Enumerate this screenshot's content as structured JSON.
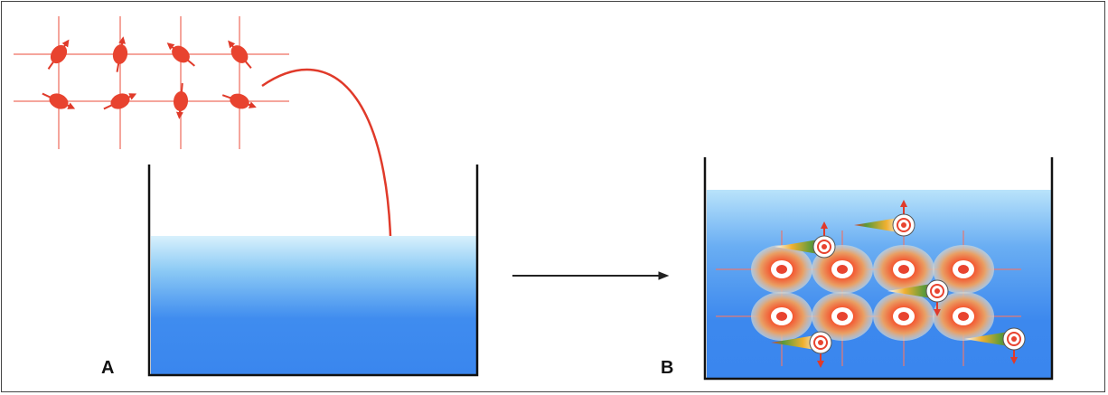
{
  "panels": {
    "a": {
      "label": "A"
    },
    "b": {
      "label": "B"
    }
  },
  "colors": {
    "lattice": "#f08a80",
    "particle": "#e8432f",
    "arrow": "#e03a2a",
    "water_top": "#c9ecfb",
    "water_bottom": "#3a86ee",
    "container": "#111111",
    "transition_arrow": "#222222"
  },
  "icons": {
    "particle": "spin-particle-icon",
    "ring": "target-ring-icon",
    "comet": "comet-particle-icon"
  }
}
